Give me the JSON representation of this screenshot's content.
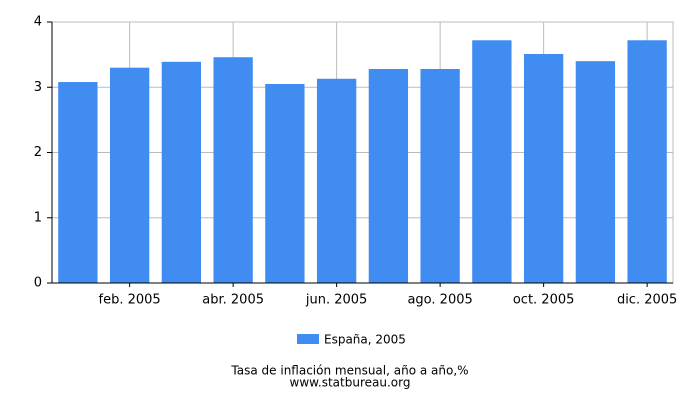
{
  "chart_data": {
    "type": "bar",
    "title": "Tasa de inflación mensual, año a año,%",
    "source": "www.statbureau.org",
    "categories": [
      null,
      "feb. 2005",
      null,
      "abr. 2005",
      null,
      "jun. 2005",
      null,
      "ago. 2005",
      null,
      "oct. 2005",
      null,
      "dic. 2005"
    ],
    "series": [
      {
        "name": "España, 2005",
        "color": "#418cf0",
        "values": [
          3.08,
          3.3,
          3.39,
          3.46,
          3.05,
          3.13,
          3.28,
          3.28,
          3.72,
          3.51,
          3.4,
          3.72
        ]
      }
    ],
    "ylim": [
      0,
      4
    ],
    "yticks": [
      0,
      1,
      2,
      3,
      4
    ],
    "grid": true
  }
}
